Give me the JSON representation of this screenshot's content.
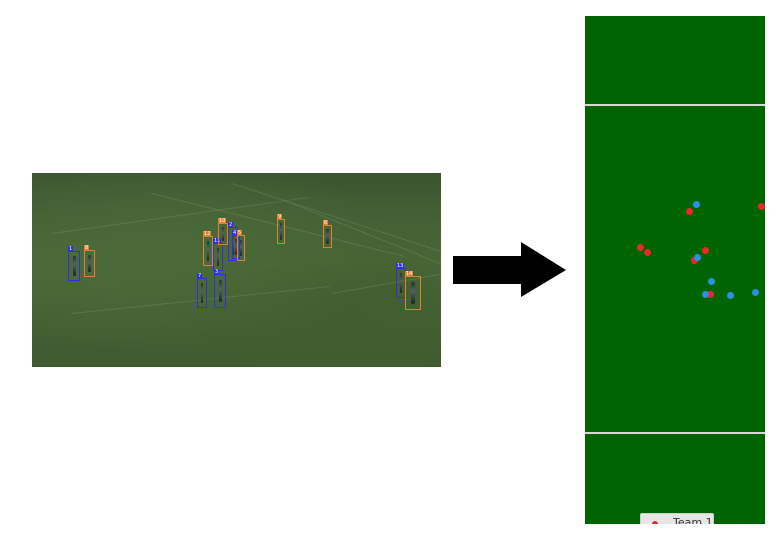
{
  "photo": {
    "detections": [
      {
        "id": "1",
        "color": "#3030e0"
      },
      {
        "id": "8",
        "color": "#e08030"
      },
      {
        "id": "12",
        "color": "#e08030"
      },
      {
        "id": "11",
        "color": "#3030e0"
      },
      {
        "id": "10",
        "color": "#e08030"
      },
      {
        "id": "2",
        "color": "#3030e0"
      },
      {
        "id": "7",
        "color": "#3030e0"
      },
      {
        "id": "3",
        "color": "#3030e0"
      },
      {
        "id": "9",
        "color": "#e08030"
      },
      {
        "id": "6",
        "color": "#e08030"
      },
      {
        "id": "13",
        "color": "#3030e0"
      },
      {
        "id": "14",
        "color": "#e08030"
      },
      {
        "id": "4",
        "color": "#3030e0"
      },
      {
        "id": "5",
        "color": "#e08030"
      }
    ]
  },
  "arrow_icon": "right-arrow",
  "pitch": {
    "background": "#006400",
    "line_color": "#d8d8d8",
    "team_colors": {
      "team1": "#e8282c",
      "team2": "#2b8fe6"
    },
    "legend": {
      "label": "Team 1",
      "color": "#e8282c"
    }
  }
}
